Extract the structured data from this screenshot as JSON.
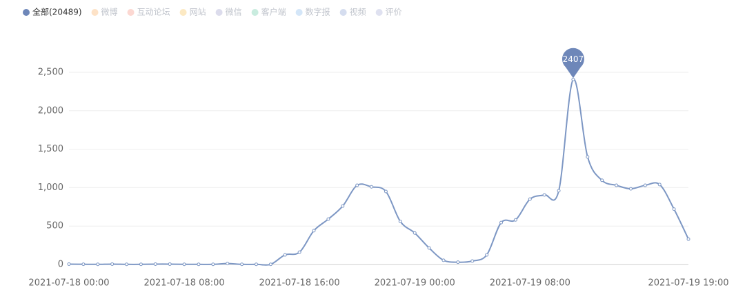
{
  "chart_data": {
    "type": "line",
    "legend": [
      {
        "name": "全部(20489)",
        "color": "#6e87b9",
        "selected": true
      },
      {
        "name": "微博",
        "color": "#fde2c7",
        "selected": false
      },
      {
        "name": "互动论坛",
        "color": "#fcd8d2",
        "selected": false
      },
      {
        "name": "网站",
        "color": "#fce9c3",
        "selected": false
      },
      {
        "name": "微信",
        "color": "#dcdcec",
        "selected": false
      },
      {
        "name": "客户端",
        "color": "#c9ecdf",
        "selected": false
      },
      {
        "name": "数字报",
        "color": "#d4e6f8",
        "selected": false
      },
      {
        "name": "视频",
        "color": "#d5ddef",
        "selected": false
      },
      {
        "name": "评价",
        "color": "#dfe1f0",
        "selected": false
      }
    ],
    "categories": [
      "2021-07-18 00:00",
      null,
      null,
      null,
      null,
      null,
      null,
      null,
      "2021-07-18 08:00",
      null,
      null,
      null,
      null,
      null,
      null,
      null,
      "2021-07-18 16:00",
      null,
      null,
      null,
      null,
      null,
      null,
      null,
      "2021-07-19 00:00",
      null,
      null,
      null,
      null,
      null,
      null,
      null,
      "2021-07-19 08:00",
      null,
      null,
      null,
      null,
      null,
      null,
      null,
      null,
      null,
      null,
      "2021-07-19 19:00"
    ],
    "series": [
      {
        "name": "全部(20489)",
        "color": "#7d97c4",
        "values": [
          5,
          3,
          2,
          5,
          2,
          2,
          5,
          5,
          2,
          2,
          2,
          12,
          2,
          2,
          2,
          125,
          160,
          440,
          590,
          760,
          1030,
          1010,
          950,
          560,
          410,
          215,
          55,
          30,
          45,
          125,
          545,
          580,
          850,
          905,
          960,
          2407,
          1400,
          1095,
          1030,
          985,
          1030,
          1040,
          720,
          330
        ]
      }
    ],
    "ylim": [
      0,
      2500
    ],
    "yticks": [
      0,
      500,
      {
        "value": 1000,
        "label": "1,000"
      },
      {
        "value": 1500,
        "label": "1,500"
      },
      {
        "value": 2000,
        "label": "2,000"
      },
      {
        "value": 2500,
        "label": "2,500"
      }
    ],
    "grid": true,
    "max_marker": true
  }
}
